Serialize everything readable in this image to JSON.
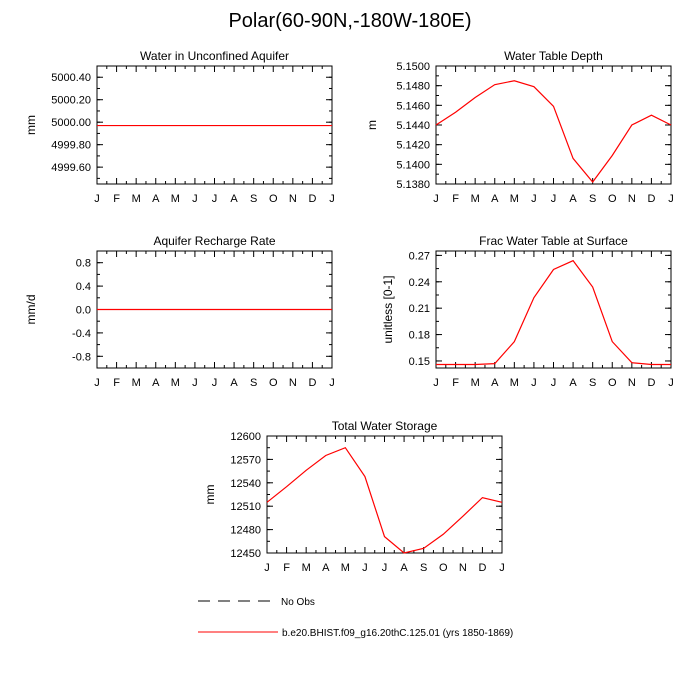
{
  "title": "Polar(60-90N,-180W-180E)",
  "colors": {
    "model_line": "#ff0000",
    "obs_line": "#000000",
    "axis": "#000000"
  },
  "chart_data": [
    {
      "type": "line",
      "title": "Water in Unconfined Aquifer",
      "xlabel": "",
      "ylabel": "mm",
      "categories": [
        "J",
        "F",
        "M",
        "A",
        "M",
        "J",
        "J",
        "A",
        "S",
        "O",
        "N",
        "D",
        "J"
      ],
      "ylim": [
        4999.45,
        5000.5
      ],
      "yticks": [
        4999.6,
        4999.8,
        5000.0,
        5000.2,
        5000.4
      ],
      "yticklabels": [
        "4999.60",
        "4999.80",
        "5000.00",
        "5000.20",
        "5000.40"
      ],
      "series": [
        {
          "name": "b.e20.BHIST.f09_g16.20thC.125.01 (yrs 1850-1869)",
          "values": [
            4999.97,
            4999.97,
            4999.97,
            4999.97,
            4999.97,
            4999.97,
            4999.97,
            4999.97,
            4999.97,
            4999.97,
            4999.97,
            4999.97,
            4999.97
          ]
        }
      ]
    },
    {
      "type": "line",
      "title": "Water Table Depth",
      "xlabel": "",
      "ylabel": "m",
      "categories": [
        "J",
        "F",
        "M",
        "A",
        "M",
        "J",
        "J",
        "A",
        "S",
        "O",
        "N",
        "D",
        "J"
      ],
      "ylim": [
        5.138,
        5.15
      ],
      "yticks": [
        5.138,
        5.14,
        5.142,
        5.144,
        5.146,
        5.148,
        5.15
      ],
      "yticklabels": [
        "5.1380",
        "5.1400",
        "5.1420",
        "5.1440",
        "5.1460",
        "5.1480",
        "5.1500"
      ],
      "series": [
        {
          "name": "b.e20.BHIST.f09_g16.20thC.125.01 (yrs 1850-1869)",
          "values": [
            5.144,
            5.1453,
            5.1468,
            5.1481,
            5.1485,
            5.1479,
            5.1459,
            5.1406,
            5.1382,
            5.1409,
            5.144,
            5.145,
            5.144
          ]
        }
      ]
    },
    {
      "type": "line",
      "title": "Aquifer Recharge Rate",
      "xlabel": "",
      "ylabel": "mm/d",
      "categories": [
        "J",
        "F",
        "M",
        "A",
        "M",
        "J",
        "J",
        "A",
        "S",
        "O",
        "N",
        "D",
        "J"
      ],
      "ylim": [
        -1.0,
        1.0
      ],
      "yticks": [
        -0.8,
        -0.4,
        0.0,
        0.4,
        0.8
      ],
      "yticklabels": [
        "-0.8",
        "-0.4",
        "0.0",
        "0.4",
        "0.8"
      ],
      "series": [
        {
          "name": "b.e20.BHIST.f09_g16.20thC.125.01 (yrs 1850-1869)",
          "values": [
            0,
            0,
            0,
            0,
            0,
            0,
            0,
            0,
            0,
            0,
            0,
            0,
            0
          ]
        }
      ]
    },
    {
      "type": "line",
      "title": "Frac Water Table at Surface",
      "xlabel": "",
      "ylabel": "unitless [0-1]",
      "categories": [
        "J",
        "F",
        "M",
        "A",
        "M",
        "J",
        "J",
        "A",
        "S",
        "O",
        "N",
        "D",
        "J"
      ],
      "ylim": [
        0.142,
        0.275
      ],
      "yticks": [
        0.15,
        0.18,
        0.21,
        0.24,
        0.27
      ],
      "yticklabels": [
        "0.15",
        "0.18",
        "0.21",
        "0.24",
        "0.27"
      ],
      "series": [
        {
          "name": "b.e20.BHIST.f09_g16.20thC.125.01 (yrs 1850-1869)",
          "values": [
            0.146,
            0.146,
            0.146,
            0.147,
            0.172,
            0.222,
            0.254,
            0.264,
            0.234,
            0.172,
            0.148,
            0.146,
            0.146
          ]
        }
      ]
    },
    {
      "type": "line",
      "title": "Total Water Storage",
      "xlabel": "",
      "ylabel": "mm",
      "categories": [
        "J",
        "F",
        "M",
        "A",
        "M",
        "J",
        "J",
        "A",
        "S",
        "O",
        "N",
        "D",
        "J"
      ],
      "ylim": [
        12450,
        12600
      ],
      "yticks": [
        12450,
        12480,
        12510,
        12540,
        12570,
        12600
      ],
      "yticklabels": [
        "12450",
        "12480",
        "12510",
        "12540",
        "12570",
        "12600"
      ],
      "series": [
        {
          "name": "b.e20.BHIST.f09_g16.20thC.125.01 (yrs 1850-1869)",
          "values": [
            12515,
            12535,
            12556,
            12575,
            12585,
            12548,
            12471,
            12450,
            12456,
            12474,
            12497,
            12521,
            12515
          ]
        }
      ]
    }
  ],
  "legend": {
    "obs_label": "No Obs",
    "model_label": "b.e20.BHIST.f09_g16.20thC.125.01 (yrs 1850-1869)"
  }
}
